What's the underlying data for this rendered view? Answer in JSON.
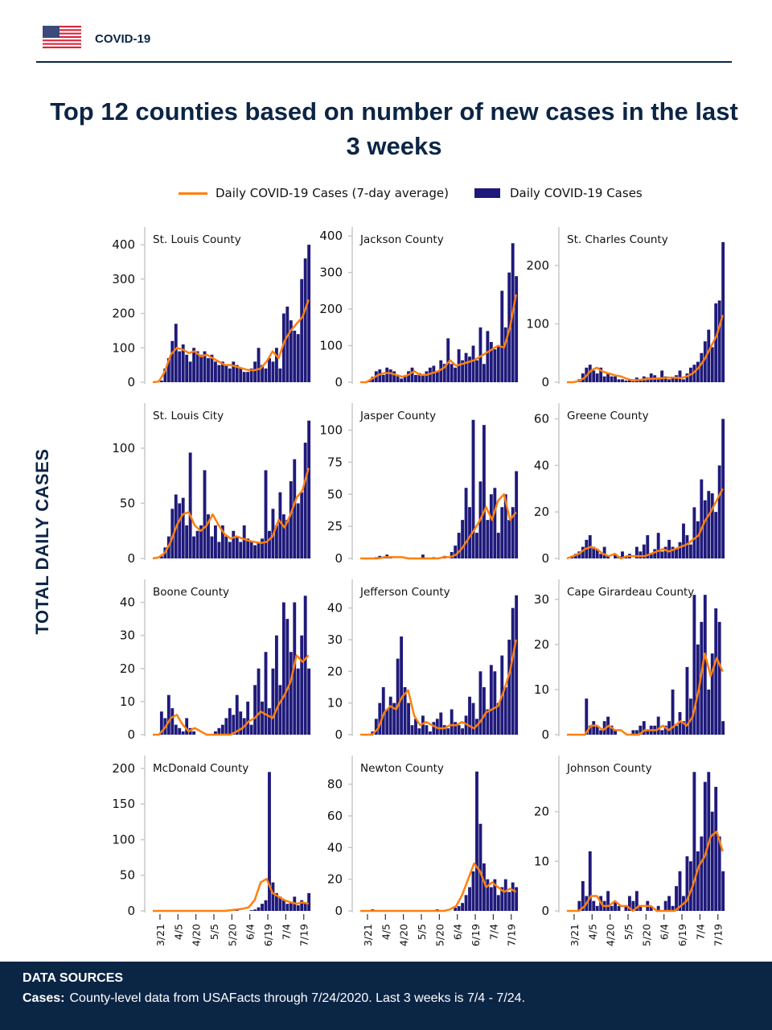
{
  "header": {
    "brand": "COVID-19",
    "flag_icon": "us-flag-icon"
  },
  "title": "Top 12 counties based on number of new cases in the last 3 weeks",
  "legend": {
    "avg_label": "Daily COVID-19 Cases (7-day average)",
    "bars_label": "Daily COVID-19 Cases"
  },
  "y_axis_label": "TOTAL DAILY CASES",
  "footer": {
    "heading": "DATA SOURCES",
    "cases_label": "Cases:",
    "cases_text": "County-level data from USAFacts through 7/24/2020. Last 3 weeks is 7/4 - 7/24."
  },
  "colors": {
    "bars": "#1f1a7a",
    "average": "#ff7f0e",
    "brand": "#0b2545"
  },
  "chart_data": {
    "type": "bar+line small multiples",
    "x_range": [
      "3/15",
      "7/24"
    ],
    "x_ticks": [
      "3/21",
      "4/5",
      "4/20",
      "5/5",
      "5/20",
      "6/4",
      "6/19",
      "7/4",
      "7/19"
    ],
    "daily_sampling": "every 3rd day from 3/15",
    "average_sampling": "every 5th day from 3/15",
    "panels": [
      {
        "name": "St. Louis County",
        "yticks": [
          0,
          100,
          200,
          300,
          400
        ],
        "ymax": 433,
        "daily": [
          0,
          0,
          5,
          40,
          70,
          120,
          170,
          90,
          110,
          80,
          60,
          100,
          90,
          80,
          90,
          70,
          80,
          60,
          50,
          60,
          50,
          40,
          60,
          50,
          40,
          30,
          30,
          40,
          60,
          100,
          50,
          40,
          70,
          60,
          100,
          40,
          200,
          220,
          180,
          150,
          140,
          300,
          360,
          400
        ],
        "average": [
          0,
          2,
          30,
          80,
          100,
          95,
          85,
          90,
          75,
          80,
          70,
          60,
          50,
          50,
          45,
          40,
          35,
          35,
          40,
          60,
          90,
          70,
          120,
          150,
          170,
          190,
          240
        ]
      },
      {
        "name": "Jackson County",
        "yticks": [
          0,
          100,
          200,
          300,
          400
        ],
        "ymax": 407,
        "daily": [
          0,
          0,
          5,
          15,
          30,
          35,
          20,
          40,
          35,
          30,
          20,
          10,
          15,
          30,
          40,
          20,
          25,
          20,
          30,
          40,
          45,
          30,
          60,
          50,
          120,
          50,
          40,
          90,
          60,
          80,
          70,
          100,
          60,
          150,
          50,
          140,
          110,
          90,
          100,
          250,
          150,
          300,
          380,
          290
        ],
        "average": [
          0,
          0,
          10,
          20,
          25,
          25,
          20,
          15,
          20,
          30,
          20,
          20,
          25,
          30,
          40,
          60,
          45,
          50,
          55,
          60,
          70,
          80,
          90,
          100,
          95,
          150,
          240
        ]
      },
      {
        "name": "St. Charles County",
        "yticks": [
          0,
          100,
          200
        ],
        "ymax": 255,
        "daily": [
          0,
          0,
          1,
          5,
          15,
          25,
          30,
          20,
          15,
          25,
          10,
          15,
          10,
          10,
          5,
          5,
          3,
          5,
          5,
          8,
          5,
          10,
          8,
          15,
          12,
          8,
          20,
          10,
          5,
          8,
          12,
          20,
          5,
          15,
          25,
          30,
          35,
          50,
          70,
          90,
          60,
          135,
          140,
          240
        ],
        "average": [
          0,
          0,
          2,
          8,
          20,
          25,
          18,
          15,
          12,
          10,
          6,
          3,
          4,
          5,
          6,
          6,
          7,
          8,
          8,
          7,
          10,
          15,
          25,
          40,
          60,
          80,
          115
        ]
      },
      {
        "name": "St. Louis City",
        "yticks": [
          0,
          50,
          100
        ],
        "ymax": 135,
        "daily": [
          0,
          0,
          2,
          10,
          20,
          45,
          58,
          50,
          55,
          30,
          96,
          20,
          25,
          30,
          80,
          40,
          20,
          30,
          15,
          30,
          20,
          15,
          25,
          20,
          15,
          30,
          18,
          15,
          12,
          15,
          18,
          80,
          25,
          45,
          30,
          60,
          40,
          35,
          70,
          90,
          50,
          60,
          105,
          125
        ],
        "average": [
          0,
          1,
          5,
          15,
          30,
          40,
          42,
          30,
          25,
          30,
          40,
          30,
          22,
          18,
          20,
          18,
          16,
          15,
          14,
          15,
          20,
          35,
          28,
          40,
          55,
          62,
          82
        ]
      },
      {
        "name": "Jasper County",
        "yticks": [
          0,
          25,
          50,
          75,
          100
        ],
        "ymax": 116,
        "daily": [
          0,
          0,
          0,
          0,
          1,
          2,
          1,
          3,
          1,
          0,
          0,
          0,
          0,
          0,
          0,
          0,
          0,
          3,
          0,
          0,
          1,
          0,
          0,
          2,
          0,
          5,
          10,
          20,
          30,
          55,
          40,
          108,
          20,
          60,
          104,
          30,
          50,
          55,
          20,
          40,
          50,
          30,
          40,
          68
        ],
        "average": [
          0,
          0,
          0,
          0,
          1,
          1,
          1,
          1,
          0,
          0,
          0,
          0,
          0,
          0,
          1,
          1,
          3,
          8,
          15,
          22,
          30,
          40,
          30,
          45,
          50,
          30,
          36
        ]
      },
      {
        "name": "Greene County",
        "yticks": [
          0,
          20,
          40,
          60
        ],
        "ymax": 64,
        "daily": [
          0,
          1,
          2,
          3,
          5,
          8,
          10,
          5,
          4,
          2,
          5,
          1,
          0,
          2,
          1,
          3,
          1,
          2,
          0,
          5,
          3,
          6,
          10,
          2,
          4,
          11,
          3,
          5,
          8,
          5,
          4,
          7,
          15,
          10,
          6,
          22,
          16,
          34,
          25,
          29,
          28,
          20,
          40,
          60
        ],
        "average": [
          0,
          1,
          2,
          4,
          5,
          4,
          2,
          1,
          2,
          0,
          1,
          1,
          1,
          1,
          2,
          3,
          4,
          3,
          4,
          5,
          6,
          8,
          10,
          16,
          20,
          25,
          30
        ]
      },
      {
        "name": "Boone County",
        "yticks": [
          0,
          10,
          20,
          30,
          40
        ],
        "ymax": 45,
        "daily": [
          0,
          0,
          7,
          5,
          12,
          8,
          3,
          2,
          1,
          5,
          2,
          1,
          0,
          0,
          0,
          0,
          0,
          1,
          2,
          3,
          5,
          8,
          6,
          12,
          7,
          5,
          10,
          3,
          15,
          20,
          10,
          25,
          8,
          20,
          30,
          15,
          40,
          35,
          25,
          40,
          20,
          30,
          42,
          20
        ],
        "average": [
          0,
          0,
          2,
          5,
          6,
          3,
          1,
          2,
          1,
          0,
          0,
          0,
          0,
          0,
          1,
          2,
          4,
          5,
          7,
          6,
          5,
          9,
          12,
          16,
          24,
          22,
          24
        ]
      },
      {
        "name": "Jefferson County",
        "yticks": [
          0,
          10,
          20,
          30,
          40
        ],
        "ymax": 47,
        "daily": [
          0,
          0,
          0,
          1,
          5,
          10,
          15,
          8,
          12,
          10,
          24,
          31,
          15,
          10,
          3,
          5,
          2,
          6,
          3,
          1,
          4,
          5,
          7,
          3,
          2,
          8,
          4,
          3,
          2,
          6,
          12,
          10,
          5,
          20,
          15,
          8,
          22,
          20,
          10,
          25,
          15,
          30,
          40,
          44
        ],
        "average": [
          0,
          0,
          0,
          2,
          7,
          9,
          8,
          12,
          14,
          6,
          3,
          4,
          3,
          2,
          2,
          3,
          3,
          4,
          3,
          2,
          4,
          7,
          8,
          9,
          14,
          20,
          30
        ]
      },
      {
        "name": "Cape Girardeau County",
        "yticks": [
          0,
          10,
          20,
          30
        ],
        "ymax": 33,
        "daily": [
          0,
          0,
          0,
          0,
          0,
          8,
          2,
          3,
          2,
          1,
          3,
          4,
          2,
          1,
          0,
          0,
          0,
          0,
          1,
          1,
          2,
          3,
          1,
          2,
          2,
          4,
          1,
          2,
          3,
          10,
          2,
          5,
          3,
          15,
          8,
          31,
          20,
          25,
          31,
          10,
          18,
          28,
          25,
          3
        ],
        "average": [
          0,
          0,
          0,
          0,
          2,
          2,
          1,
          2,
          1,
          1,
          0,
          0,
          0,
          1,
          1,
          1,
          2,
          1,
          2,
          3,
          2,
          4,
          10,
          18,
          13,
          17,
          14
        ]
      },
      {
        "name": "McDonald County",
        "yticks": [
          0,
          50,
          100,
          150,
          200
        ],
        "ymax": 209,
        "daily": [
          0,
          0,
          0,
          0,
          0,
          0,
          0,
          0,
          0,
          0,
          0,
          0,
          0,
          0,
          0,
          0,
          0,
          0,
          0,
          0,
          0,
          0,
          2,
          1,
          0,
          0,
          0,
          1,
          2,
          5,
          10,
          15,
          195,
          40,
          25,
          20,
          15,
          10,
          12,
          20,
          8,
          15,
          12,
          25
        ],
        "average": [
          0,
          0,
          0,
          0,
          0,
          0,
          0,
          0,
          0,
          0,
          0,
          0,
          0,
          1,
          2,
          3,
          5,
          15,
          40,
          45,
          25,
          20,
          15,
          12,
          10,
          12,
          10
        ]
      },
      {
        "name": "Newton County",
        "yticks": [
          0,
          20,
          40,
          60,
          80
        ],
        "ymax": 94,
        "daily": [
          0,
          0,
          0,
          1,
          0,
          0,
          0,
          0,
          0,
          0,
          0,
          0,
          0,
          0,
          0,
          0,
          0,
          0,
          0,
          0,
          0,
          1,
          0,
          0,
          0,
          0,
          2,
          3,
          5,
          10,
          15,
          25,
          88,
          55,
          30,
          20,
          15,
          20,
          10,
          15,
          20,
          12,
          18,
          15
        ],
        "average": [
          0,
          0,
          0,
          0,
          0,
          0,
          0,
          0,
          0,
          0,
          0,
          0,
          0,
          0,
          0,
          1,
          3,
          10,
          20,
          30,
          25,
          15,
          18,
          15,
          12,
          14,
          12
        ]
      },
      {
        "name": "Johnson County",
        "yticks": [
          0,
          10,
          20
        ],
        "ymax": 30,
        "daily": [
          0,
          0,
          0,
          2,
          6,
          3,
          12,
          2,
          1,
          3,
          2,
          4,
          1,
          2,
          1,
          0,
          1,
          3,
          2,
          4,
          1,
          0,
          2,
          1,
          0,
          1,
          0,
          2,
          3,
          1,
          5,
          8,
          3,
          11,
          10,
          28,
          12,
          15,
          26,
          28,
          20,
          25,
          15,
          8
        ],
        "average": [
          0,
          0,
          0,
          1,
          3,
          3,
          1,
          1,
          2,
          1,
          1,
          0,
          1,
          1,
          1,
          0,
          0,
          0,
          0,
          1,
          2,
          5,
          9,
          11,
          15,
          16,
          12
        ]
      }
    ]
  }
}
